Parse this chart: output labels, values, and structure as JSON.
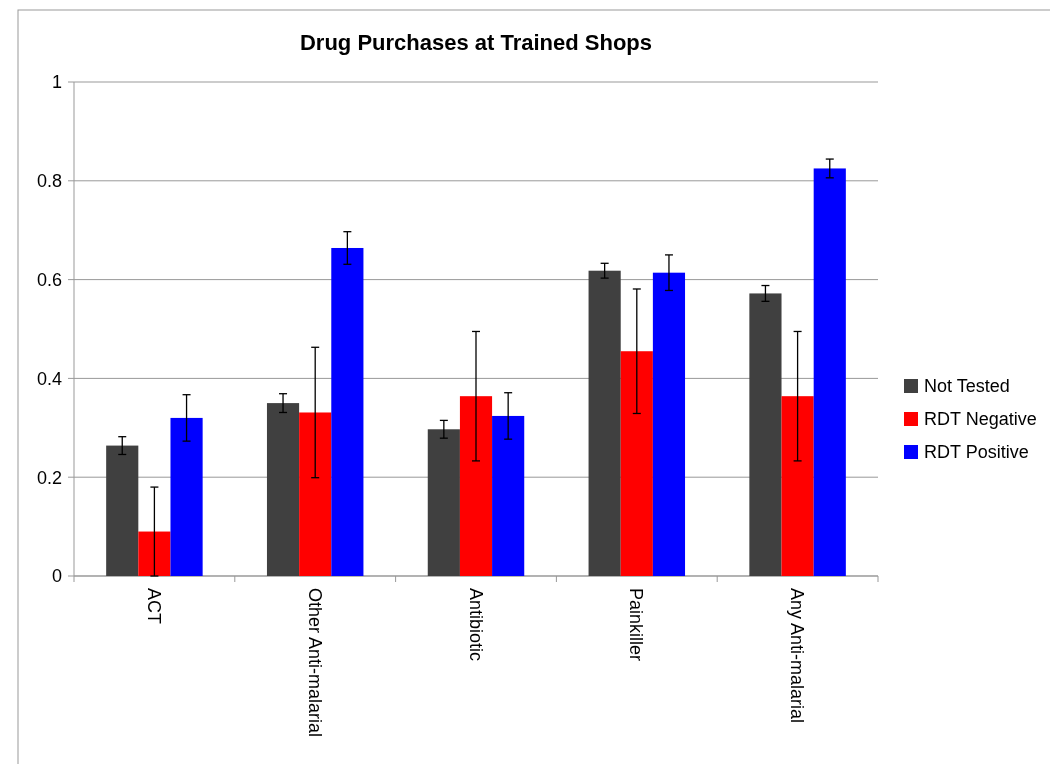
{
  "chart_data": {
    "type": "bar",
    "title": "Drug Purchases at Trained Shops",
    "categories": [
      "ACT",
      "Other Anti-malarial",
      "Antibiotic",
      "Painkiller",
      "Any Anti-malarial"
    ],
    "series": [
      {
        "name": "Not Tested",
        "color": "#404040",
        "values": [
          0.264,
          0.35,
          0.297,
          0.618,
          0.572
        ],
        "errors": [
          0.018,
          0.019,
          0.018,
          0.015,
          0.016
        ]
      },
      {
        "name": "RDT Negative",
        "color": "#ff0000",
        "values": [
          0.09,
          0.331,
          0.364,
          0.455,
          0.364
        ],
        "errors": [
          0.09,
          0.132,
          0.131,
          0.126,
          0.131
        ]
      },
      {
        "name": "RDT Positive",
        "color": "#0000ff",
        "values": [
          0.32,
          0.664,
          0.324,
          0.614,
          0.825
        ],
        "errors": [
          0.047,
          0.033,
          0.047,
          0.036,
          0.019
        ]
      }
    ],
    "ylim": [
      0,
      1
    ],
    "yticks": [
      0,
      0.2,
      0.4,
      0.6,
      0.8,
      1
    ],
    "grid": "y",
    "legend": "right"
  }
}
